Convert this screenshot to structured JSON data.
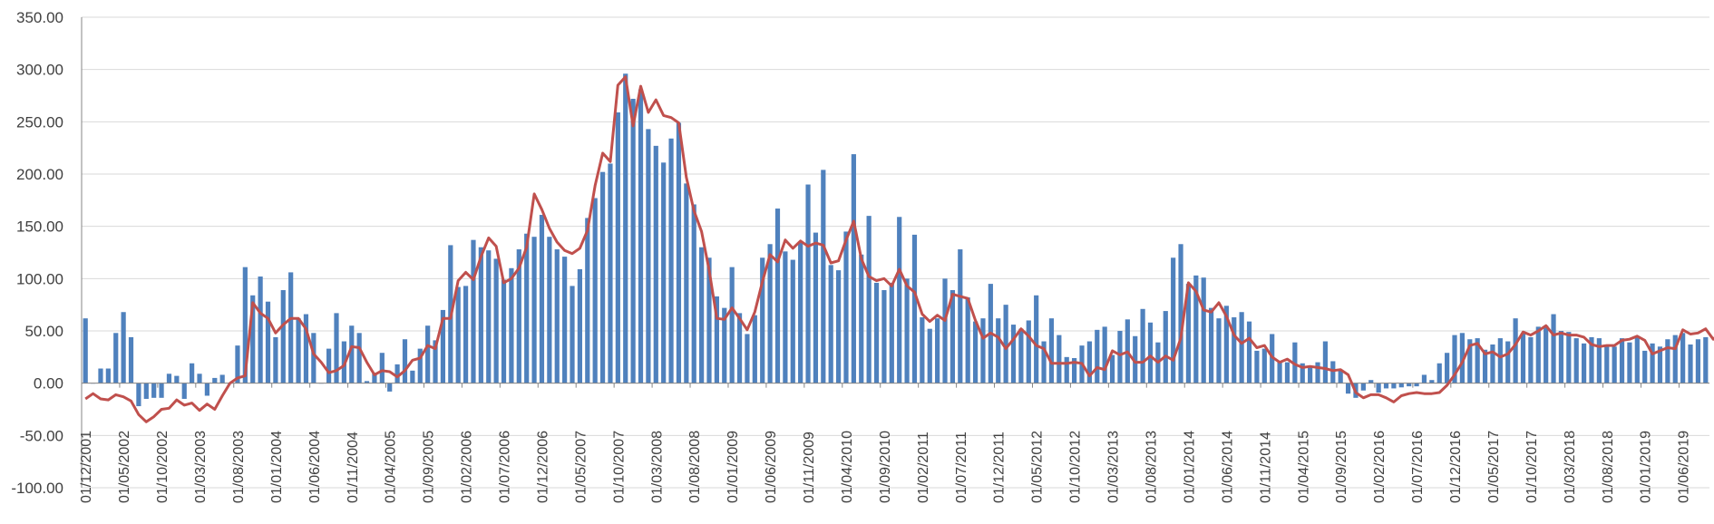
{
  "chart_data": {
    "type": "bar",
    "title": "",
    "xlabel": "",
    "ylabel": "",
    "ylim": [
      -100,
      350
    ],
    "yticks": [
      "350.00",
      "300.00",
      "250.00",
      "200.00",
      "150.00",
      "100.00",
      "50.00",
      "0.00",
      "-50.00",
      "-100.00"
    ],
    "xtick_labels": [
      "01/12/2001",
      "01/05/2002",
      "01/10/2002",
      "01/03/2003",
      "01/08/2003",
      "01/01/2004",
      "01/06/2004",
      "01/11/2004",
      "01/04/2005",
      "01/09/2005",
      "01/02/2006",
      "01/07/2006",
      "01/12/2006",
      "01/05/2007",
      "01/10/2007",
      "01/03/2008",
      "01/08/2008",
      "01/01/2009",
      "01/06/2009",
      "01/11/2009",
      "01/04/2010",
      "01/09/2010",
      "01/02/2011",
      "01/07/2011",
      "01/12/2011",
      "01/05/2012",
      "01/10/2012",
      "01/03/2013",
      "01/08/2013",
      "01/01/2014",
      "01/06/2014",
      "01/11/2014",
      "01/04/2015",
      "01/09/2015",
      "01/02/2016",
      "01/07/2016",
      "01/12/2016",
      "01/05/2017",
      "01/10/2017",
      "01/03/2018",
      "01/08/2018",
      "01/01/2019",
      "01/06/2019"
    ],
    "grid": true,
    "legend": "none",
    "series": [
      {
        "type": "bar",
        "color": "#4f81bd",
        "values": [
          62,
          0,
          14,
          14,
          48,
          68,
          44,
          -22,
          -15,
          -14,
          -14,
          9,
          7,
          -15,
          19,
          9,
          -12,
          5,
          8,
          0,
          36,
          111,
          84,
          102,
          78,
          44,
          89,
          106,
          62,
          66,
          48,
          0,
          33,
          67,
          40,
          55,
          48,
          2,
          10,
          29,
          -8,
          18,
          42,
          12,
          33,
          55,
          41,
          70,
          132,
          92,
          93,
          137,
          130,
          127,
          119,
          99,
          110,
          128,
          143,
          140,
          161,
          140,
          128,
          121,
          93,
          109,
          158,
          177,
          202,
          210,
          259,
          296,
          272,
          281,
          243,
          227,
          211,
          234,
          249,
          191,
          171,
          130,
          120,
          83,
          72,
          111,
          67,
          47,
          65,
          120,
          133,
          167,
          126,
          118,
          135,
          190,
          144,
          204,
          113,
          108,
          145,
          219,
          123,
          160,
          96,
          89,
          96,
          159,
          100,
          142,
          63,
          52,
          62,
          100,
          89,
          128,
          82,
          59,
          62,
          95,
          62,
          75,
          56,
          52,
          60,
          84,
          40,
          62,
          46,
          25,
          24,
          36,
          40,
          51,
          54,
          27,
          50,
          61,
          45,
          71,
          58,
          39,
          69,
          120,
          133,
          95,
          103,
          101,
          72,
          62,
          74,
          63,
          68,
          59,
          31,
          33,
          47,
          20,
          20,
          39,
          19,
          16,
          20,
          40,
          21,
          12,
          -10,
          -14,
          -7,
          3,
          -9,
          -5,
          -5,
          -4,
          -3,
          -3,
          8,
          3,
          19,
          29,
          46,
          48,
          42,
          43,
          32,
          37,
          43,
          40,
          62,
          48,
          44,
          54,
          55,
          66,
          50,
          49,
          43,
          38,
          44,
          43,
          37,
          35,
          43,
          39,
          44,
          31,
          38,
          35,
          42,
          46,
          48,
          37,
          42,
          44
        ]
      },
      {
        "type": "line",
        "color": "#c0504d",
        "values": [
          -15,
          -10,
          -15,
          -16,
          -11,
          -13,
          -17,
          -30,
          -37,
          -32,
          -25,
          -24,
          -16,
          -21,
          -19,
          -26,
          -20,
          -25,
          -12,
          0,
          5,
          7,
          77,
          67,
          62,
          48,
          56,
          62,
          62,
          52,
          28,
          20,
          10,
          12,
          17,
          35,
          34,
          20,
          8,
          12,
          11,
          6,
          12,
          22,
          24,
          36,
          33,
          62,
          62,
          98,
          106,
          99,
          121,
          139,
          131,
          96,
          100,
          110,
          130,
          181,
          166,
          148,
          135,
          127,
          124,
          129,
          146,
          189,
          220,
          212,
          285,
          293,
          246,
          284,
          259,
          271,
          256,
          254,
          249,
          197,
          165,
          145,
          108,
          62,
          61,
          72,
          62,
          51,
          68,
          97,
          123,
          116,
          137,
          129,
          136,
          131,
          134,
          132,
          115,
          117,
          137,
          155,
          119,
          102,
          98,
          100,
          93,
          109,
          93,
          87,
          66,
          59,
          65,
          60,
          85,
          83,
          81,
          60,
          43,
          48,
          44,
          33,
          42,
          52,
          45,
          36,
          33,
          19,
          19,
          19,
          20,
          19,
          7,
          15,
          13,
          31,
          27,
          30,
          20,
          20,
          26,
          20,
          26,
          22,
          43,
          96,
          88,
          70,
          68,
          77,
          64,
          46,
          38,
          43,
          34,
          36,
          25,
          20,
          23,
          18,
          15,
          16,
          15,
          14,
          12,
          13,
          8,
          -9,
          -14,
          -11,
          -11,
          -14,
          -18,
          -12,
          -10,
          -9,
          -10,
          -10,
          -9,
          -2,
          8,
          20,
          36,
          38,
          28,
          30,
          25,
          28,
          37,
          49,
          46,
          50,
          55,
          46,
          48,
          46,
          46,
          44,
          37,
          35,
          36,
          36,
          41,
          42,
          45,
          41,
          28,
          31,
          34,
          33,
          51,
          47,
          48,
          52,
          42,
          49
        ]
      }
    ]
  }
}
